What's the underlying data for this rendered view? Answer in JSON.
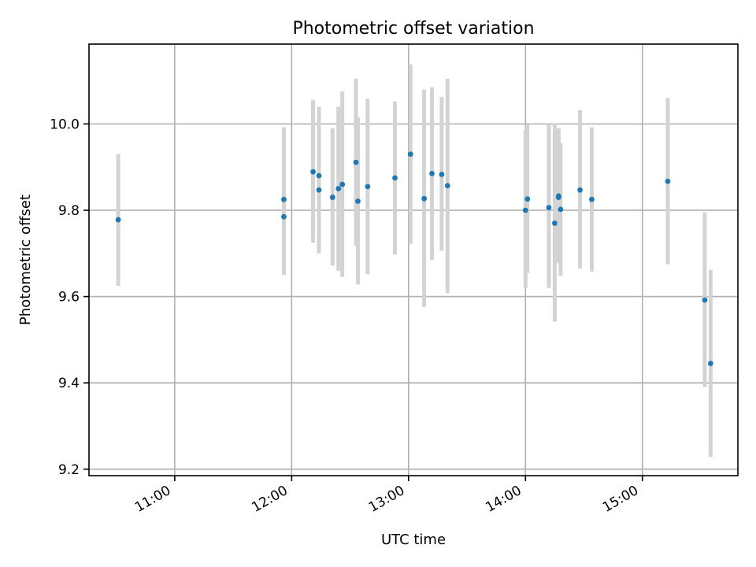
{
  "chart_data": {
    "type": "scatter",
    "title": "Photometric offset variation",
    "xlabel": "UTC time",
    "ylabel": "Photometric offset",
    "x_axis": {
      "kind": "time",
      "range": [
        "10:16",
        "15:49"
      ]
    },
    "y_axis": {
      "range": [
        9.185,
        10.185
      ]
    },
    "x_ticks": [
      {
        "time": "11:00",
        "label": "11:00"
      },
      {
        "time": "12:00",
        "label": "12:00"
      },
      {
        "time": "13:00",
        "label": "13:00"
      },
      {
        "time": "14:00",
        "label": "14:00"
      },
      {
        "time": "15:00",
        "label": "15:00"
      }
    ],
    "y_ticks": [
      {
        "value": 9.2,
        "label": "9.2"
      },
      {
        "value": 9.4,
        "label": "9.4"
      },
      {
        "value": 9.6,
        "label": "9.6"
      },
      {
        "value": 9.8,
        "label": "9.8"
      },
      {
        "value": 10.0,
        "label": "10.0"
      }
    ],
    "grid": true,
    "colors": {
      "point": "#1f77b4",
      "errorbar": "#d3d3d3",
      "grid": "#b0b0b0"
    },
    "points": [
      {
        "time": "10:31",
        "y": 9.778,
        "low": 9.625,
        "high": 9.93
      },
      {
        "time": "11:56",
        "y": 9.825,
        "low": 9.655,
        "high": 9.992
      },
      {
        "time": "11:56",
        "y": 9.785,
        "low": 9.65,
        "high": 9.905
      },
      {
        "time": "12:11",
        "y": 9.889,
        "low": 9.725,
        "high": 10.055
      },
      {
        "time": "12:14",
        "y": 9.88,
        "low": 9.7,
        "high": 10.04
      },
      {
        "time": "12:14",
        "y": 9.847,
        "low": 9.705,
        "high": 9.992
      },
      {
        "time": "12:21",
        "y": 9.83,
        "low": 9.672,
        "high": 9.99
      },
      {
        "time": "12:24",
        "y": 9.85,
        "low": 9.66,
        "high": 10.04
      },
      {
        "time": "12:26",
        "y": 9.86,
        "low": 9.645,
        "high": 10.075
      },
      {
        "time": "12:33",
        "y": 9.911,
        "low": 9.718,
        "high": 10.105
      },
      {
        "time": "12:34",
        "y": 9.821,
        "low": 9.628,
        "high": 10.015
      },
      {
        "time": "12:39",
        "y": 9.855,
        "low": 9.652,
        "high": 10.058
      },
      {
        "time": "12:53",
        "y": 9.875,
        "low": 9.698,
        "high": 10.052
      },
      {
        "time": "13:01",
        "y": 9.93,
        "low": 9.722,
        "high": 10.138
      },
      {
        "time": "13:08",
        "y": 9.827,
        "low": 9.576,
        "high": 10.08
      },
      {
        "time": "13:12",
        "y": 9.885,
        "low": 9.685,
        "high": 10.085
      },
      {
        "time": "13:17",
        "y": 9.883,
        "low": 9.707,
        "high": 10.062
      },
      {
        "time": "13:20",
        "y": 9.857,
        "low": 9.608,
        "high": 10.105
      },
      {
        "time": "14:00",
        "y": 9.8,
        "low": 9.62,
        "high": 9.985
      },
      {
        "time": "14:01",
        "y": 9.826,
        "low": 9.655,
        "high": 9.998
      },
      {
        "time": "14:12",
        "y": 9.806,
        "low": 9.62,
        "high": 10.0
      },
      {
        "time": "14:15",
        "y": 9.77,
        "low": 9.542,
        "high": 10.002
      },
      {
        "time": "14:17",
        "y": 9.833,
        "low": 9.678,
        "high": 9.99
      },
      {
        "time": "14:17",
        "y": 9.83,
        "low": 9.68,
        "high": 9.98
      },
      {
        "time": "14:18",
        "y": 9.802,
        "low": 9.648,
        "high": 9.955
      },
      {
        "time": "14:28",
        "y": 9.847,
        "low": 9.665,
        "high": 10.032
      },
      {
        "time": "14:34",
        "y": 9.825,
        "low": 9.658,
        "high": 9.992
      },
      {
        "time": "15:13",
        "y": 9.867,
        "low": 9.675,
        "high": 10.06
      },
      {
        "time": "15:32",
        "y": 9.592,
        "low": 9.39,
        "high": 9.795
      },
      {
        "time": "15:35",
        "y": 9.445,
        "low": 9.228,
        "high": 9.662
      }
    ]
  }
}
